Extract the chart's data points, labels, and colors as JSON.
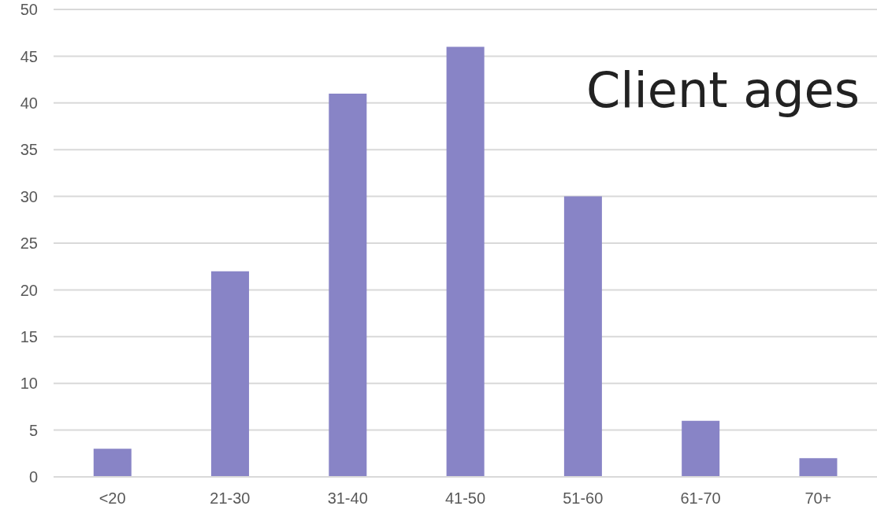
{
  "chart_data": {
    "type": "bar",
    "title": "Client ages",
    "categories": [
      "<20",
      "21-30",
      "31-40",
      "41-50",
      "51-60",
      "61-70",
      "70+"
    ],
    "values": [
      3,
      22,
      41,
      46,
      30,
      6,
      2
    ],
    "color": "#8884c6",
    "ylim": [
      0,
      50
    ],
    "yticks": [
      0,
      5,
      10,
      15,
      20,
      25,
      30,
      35,
      40,
      45,
      50
    ],
    "grid": "y"
  }
}
